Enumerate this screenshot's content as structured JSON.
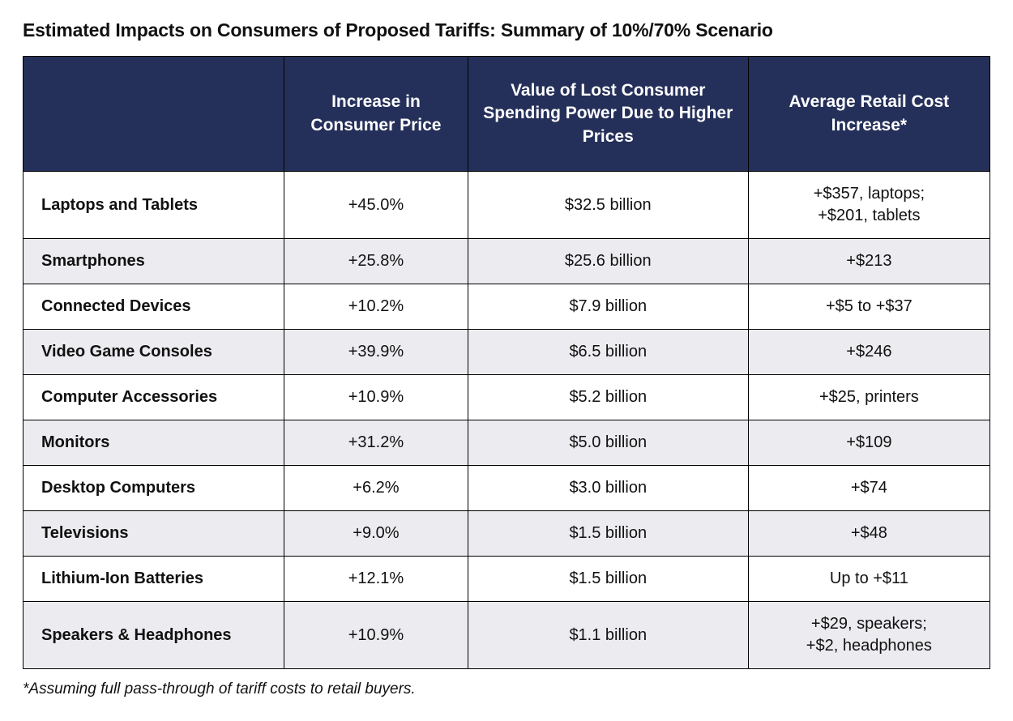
{
  "title": "Estimated Impacts on Consumers of Proposed Tariffs: Summary of 10%/70% Scenario",
  "footnote": "*Assuming full pass-through of tariff costs to retail buyers.",
  "table": {
    "type": "table",
    "header_bg": "#25305a",
    "header_fg": "#ffffff",
    "row_alt_bg": "#ececf0",
    "row_bg": "#ffffff",
    "border_color": "#000000",
    "text_color": "#111111",
    "title_fontsize": 23,
    "header_fontsize": 21,
    "body_fontsize": 20,
    "footnote_fontsize": 19,
    "col_widths_pct": [
      27,
      19,
      29,
      25
    ],
    "columns": [
      "",
      "Increase in Consumer Price",
      "Value of Lost Consumer Spending Power Due to Higher Prices",
      "Average Retail Cost Increase*"
    ],
    "rows": [
      {
        "category": "Laptops and Tablets",
        "increase": "+45.0%",
        "lost_value": "$32.5 billion",
        "retail_increase": "+$357, laptops;\n+$201, tablets",
        "alt": false,
        "tall": true
      },
      {
        "category": "Smartphones",
        "increase": "+25.8%",
        "lost_value": "$25.6 billion",
        "retail_increase": "+$213",
        "alt": true,
        "tall": false
      },
      {
        "category": "Connected Devices",
        "increase": "+10.2%",
        "lost_value": "$7.9 billion",
        "retail_increase": "+$5 to +$37",
        "alt": false,
        "tall": false
      },
      {
        "category": "Video Game Consoles",
        "increase": "+39.9%",
        "lost_value": "$6.5 billion",
        "retail_increase": "+$246",
        "alt": true,
        "tall": false
      },
      {
        "category": "Computer Accessories",
        "increase": "+10.9%",
        "lost_value": "$5.2 billion",
        "retail_increase": "+$25, printers",
        "alt": false,
        "tall": false
      },
      {
        "category": "Monitors",
        "increase": "+31.2%",
        "lost_value": "$5.0 billion",
        "retail_increase": "+$109",
        "alt": true,
        "tall": false
      },
      {
        "category": "Desktop Computers",
        "increase": "+6.2%",
        "lost_value": "$3.0 billion",
        "retail_increase": "+$74",
        "alt": false,
        "tall": false
      },
      {
        "category": "Televisions",
        "increase": "+9.0%",
        "lost_value": "$1.5 billion",
        "retail_increase": "+$48",
        "alt": true,
        "tall": false
      },
      {
        "category": "Lithium-Ion Batteries",
        "increase": "+12.1%",
        "lost_value": "$1.5 billion",
        "retail_increase": "Up to +$11",
        "alt": false,
        "tall": false
      },
      {
        "category": "Speakers & Headphones",
        "increase": "+10.9%",
        "lost_value": "$1.1 billion",
        "retail_increase": "+$29, speakers;\n+$2, headphones",
        "alt": true,
        "tall": true
      }
    ]
  }
}
